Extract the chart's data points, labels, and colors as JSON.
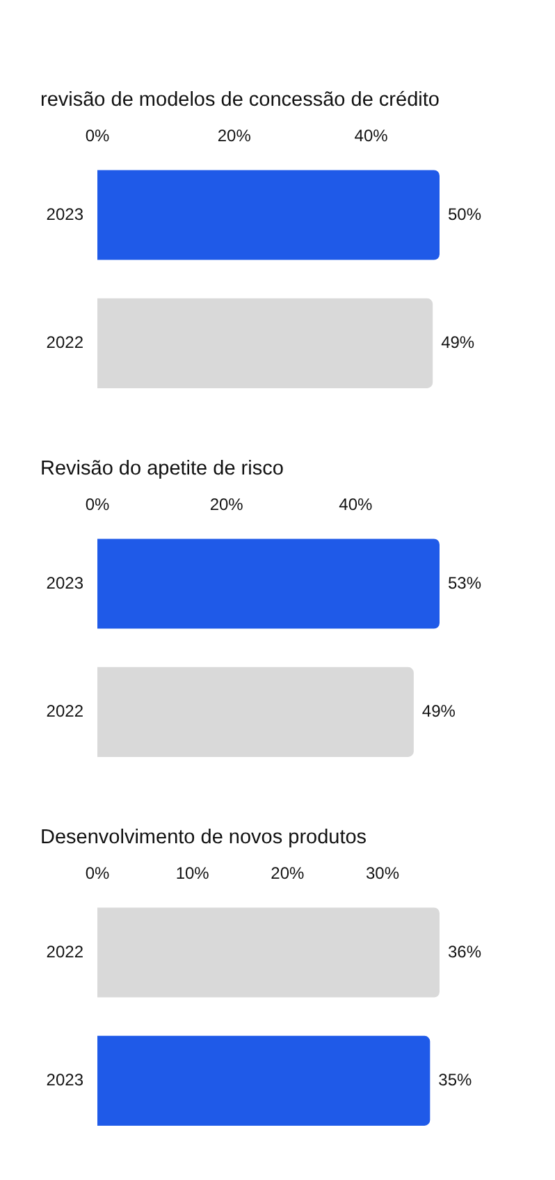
{
  "chart_data": [
    {
      "type": "bar",
      "orientation": "horizontal",
      "title": "revisão de modelos de concessão de crédito",
      "categories": [
        "2023",
        "2022"
      ],
      "values": [
        50,
        49
      ],
      "value_labels": [
        "50%",
        "49%"
      ],
      "colors": [
        "#1f5ae8",
        "#d9d9d9"
      ],
      "xlim": [
        0,
        50
      ],
      "xticks": [
        {
          "value": 0,
          "label": "0%"
        },
        {
          "value": 20,
          "label": "20%"
        },
        {
          "value": 40,
          "label": "40%"
        }
      ],
      "grid": false,
      "legend": false
    },
    {
      "type": "bar",
      "orientation": "horizontal",
      "title": "Revisão do apetite de risco",
      "categories": [
        "2023",
        "2022"
      ],
      "values": [
        53,
        49
      ],
      "value_labels": [
        "53%",
        "49%"
      ],
      "colors": [
        "#1f5ae8",
        "#d9d9d9"
      ],
      "xlim": [
        0,
        53
      ],
      "xticks": [
        {
          "value": 0,
          "label": "0%"
        },
        {
          "value": 20,
          "label": "20%"
        },
        {
          "value": 40,
          "label": "40%"
        }
      ],
      "grid": false,
      "legend": false
    },
    {
      "type": "bar",
      "orientation": "horizontal",
      "title": "Desenvolvimento de novos produtos",
      "categories": [
        "2022",
        "2023"
      ],
      "values": [
        36,
        35
      ],
      "value_labels": [
        "36%",
        "35%"
      ],
      "colors": [
        "#d9d9d9",
        "#1f5ae8"
      ],
      "xlim": [
        0,
        36
      ],
      "xticks": [
        {
          "value": 0,
          "label": "0%"
        },
        {
          "value": 10,
          "label": "10%"
        },
        {
          "value": 20,
          "label": "20%"
        },
        {
          "value": 30,
          "label": "30%"
        }
      ],
      "grid": false,
      "legend": false
    }
  ]
}
